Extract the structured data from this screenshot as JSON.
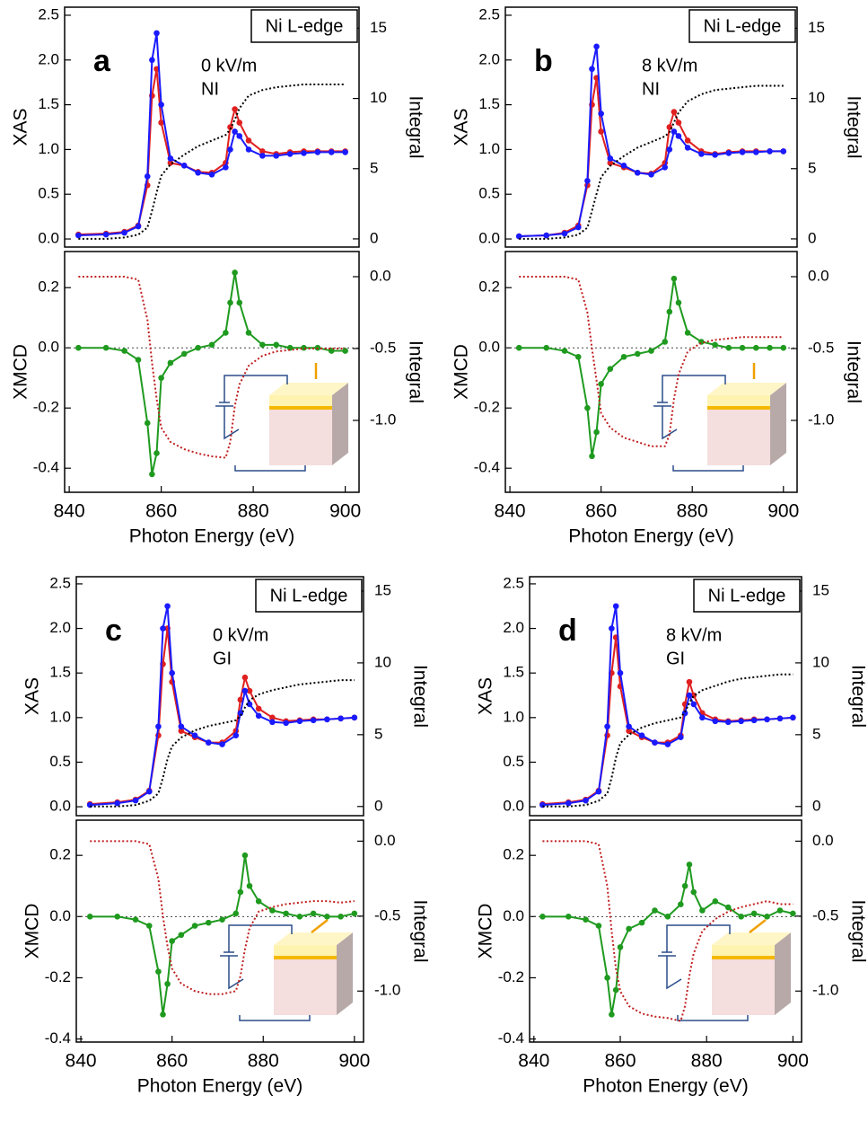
{
  "chart_data": [
    {
      "type": "line",
      "panel": "a",
      "badge": "Ni L-edge",
      "annotations": [
        "0 kV/m",
        "NI"
      ],
      "ylabel": "XAS",
      "y2label": "Integral",
      "x": [
        842,
        848,
        852,
        855,
        857,
        858,
        859,
        860,
        862,
        865,
        868,
        871,
        874,
        875,
        876,
        877,
        879,
        882,
        885,
        888,
        891,
        894,
        897,
        900
      ],
      "xlim": [
        839,
        903
      ],
      "ylim": [
        -0.09,
        2.59
      ],
      "yticks": [
        {
          "value": 0,
          "label": "0.0"
        },
        0.5,
        {
          "value": 1,
          "label": "1.0"
        },
        1.5,
        {
          "value": 2,
          "label": "2.0"
        },
        2.5
      ],
      "y2lim": [
        -0.58,
        16.5
      ],
      "y2ticks": [
        0,
        5,
        10,
        15
      ],
      "series": [
        {
          "color": "#e02020",
          "markers": true,
          "values": [
            0.05,
            0.06,
            0.08,
            0.15,
            0.6,
            1.6,
            1.9,
            1.3,
            0.85,
            0.82,
            0.75,
            0.74,
            0.85,
            1.25,
            1.45,
            1.3,
            1.1,
            0.98,
            0.95,
            0.97,
            0.98,
            0.98,
            0.98,
            0.98
          ]
        },
        {
          "color": "#1a1aff",
          "markers": true,
          "values": [
            0.04,
            0.05,
            0.07,
            0.14,
            0.7,
            2.0,
            2.3,
            1.5,
            0.9,
            0.82,
            0.74,
            0.72,
            0.8,
            1.0,
            1.2,
            1.15,
            1.0,
            0.93,
            0.93,
            0.95,
            0.96,
            0.97,
            0.97,
            0.97
          ]
        },
        {
          "color": "#000000",
          "dotted": true,
          "axis": "y2",
          "values": [
            0,
            0,
            0.1,
            0.3,
            0.8,
            2.0,
            3.3,
            4.5,
            5.3,
            6.0,
            6.6,
            7.0,
            7.4,
            7.8,
            8.5,
            9.3,
            10.2,
            10.6,
            10.8,
            10.9,
            11.0,
            11.0,
            11.0,
            11.0
          ]
        }
      ]
    },
    {
      "type": "line",
      "ylabel": "XMCD",
      "y2label": "Integral",
      "xlabel": "Photon Energy (eV)",
      "zero_line": true,
      "x": [
        842,
        848,
        852,
        855,
        857,
        858,
        859,
        860,
        862,
        865,
        868,
        871,
        874,
        875,
        876,
        877,
        879,
        882,
        885,
        888,
        891,
        894,
        897,
        900
      ],
      "xlim": [
        839,
        903
      ],
      "xticks": [
        840,
        860,
        880,
        900
      ],
      "ylim": [
        -0.48,
        0.32
      ],
      "yticks": [
        0.2,
        {
          "value": 0,
          "label": "0.0"
        },
        -0.2,
        -0.4
      ],
      "y2lim": [
        -1.5,
        0.175
      ],
      "y2ticks": [
        {
          "value": 0,
          "label": "0.0"
        },
        -0.5,
        {
          "value": -1,
          "label": "-1.0"
        }
      ],
      "series": [
        {
          "color": "#1f9a1f",
          "markers": true,
          "values": [
            0,
            0,
            -0.01,
            -0.04,
            -0.25,
            -0.42,
            -0.35,
            -0.1,
            -0.05,
            -0.02,
            0,
            0.01,
            0.05,
            0.15,
            0.25,
            0.15,
            0.05,
            0.01,
            0.01,
            0,
            0,
            0,
            -0.01,
            -0.01
          ]
        },
        {
          "color": "#c02020",
          "dotted": true,
          "axis": "y2",
          "values": [
            0,
            0,
            0,
            -0.02,
            -0.3,
            -0.6,
            -0.85,
            -1.05,
            -1.15,
            -1.2,
            -1.23,
            -1.25,
            -1.26,
            -1.15,
            -0.9,
            -0.75,
            -0.62,
            -0.55,
            -0.52,
            -0.51,
            -0.5,
            -0.5,
            -0.5,
            -0.5
          ]
        }
      ]
    },
    {
      "type": "line",
      "panel": "b",
      "badge": "Ni L-edge",
      "annotations": [
        "8 kV/m",
        "NI"
      ],
      "ylabel": "XAS",
      "y2label": "Integral",
      "x": [
        842,
        848,
        852,
        855,
        857,
        858,
        859,
        860,
        862,
        865,
        868,
        871,
        874,
        875,
        876,
        877,
        879,
        882,
        885,
        888,
        891,
        894,
        897,
        900
      ],
      "xlim": [
        839,
        903
      ],
      "ylim": [
        -0.09,
        2.59
      ],
      "yticks": [
        {
          "value": 0,
          "label": "0.0"
        },
        0.5,
        {
          "value": 1,
          "label": "1.0"
        },
        1.5,
        {
          "value": 2,
          "label": "2.0"
        },
        2.5
      ],
      "y2lim": [
        -0.58,
        16.5
      ],
      "y2ticks": [
        0,
        5,
        10,
        15
      ],
      "series": [
        {
          "color": "#e02020",
          "markers": true,
          "values": [
            0.03,
            0.04,
            0.07,
            0.15,
            0.6,
            1.5,
            1.8,
            1.2,
            0.85,
            0.8,
            0.74,
            0.73,
            0.85,
            1.25,
            1.42,
            1.3,
            1.1,
            0.98,
            0.95,
            0.97,
            0.98,
            0.98,
            0.98,
            0.98
          ]
        },
        {
          "color": "#1a1aff",
          "markers": true,
          "values": [
            0.03,
            0.04,
            0.06,
            0.13,
            0.65,
            1.9,
            2.15,
            1.4,
            0.9,
            0.82,
            0.74,
            0.72,
            0.8,
            1.0,
            1.2,
            1.15,
            1.02,
            0.95,
            0.94,
            0.96,
            0.97,
            0.97,
            0.98,
            0.98
          ]
        },
        {
          "color": "#000000",
          "dotted": true,
          "axis": "y2",
          "values": [
            0,
            0,
            0.1,
            0.3,
            0.8,
            2,
            3.2,
            4.4,
            5.2,
            5.9,
            6.5,
            6.9,
            7.3,
            7.6,
            8.3,
            9,
            9.8,
            10.3,
            10.6,
            10.7,
            10.8,
            10.9,
            10.9,
            10.9
          ]
        }
      ]
    },
    {
      "type": "line",
      "ylabel": "XMCD",
      "y2label": "Integral",
      "xlabel": "Photon Energy (eV)",
      "zero_line": true,
      "x": [
        842,
        848,
        852,
        855,
        857,
        858,
        859,
        860,
        862,
        865,
        868,
        871,
        874,
        875,
        876,
        877,
        879,
        882,
        885,
        888,
        891,
        894,
        897,
        900
      ],
      "xlim": [
        839,
        903
      ],
      "xticks": [
        840,
        860,
        880,
        900
      ],
      "ylim": [
        -0.48,
        0.32
      ],
      "yticks": [
        0.2,
        {
          "value": 0,
          "label": "0.0"
        },
        -0.2,
        -0.4
      ],
      "y2lim": [
        -1.5,
        0.175
      ],
      "y2ticks": [
        {
          "value": 0,
          "label": "0.0"
        },
        -0.5,
        {
          "value": -1,
          "label": "-1.0"
        }
      ],
      "series": [
        {
          "color": "#1f9a1f",
          "markers": true,
          "values": [
            0,
            0,
            -0.01,
            -0.03,
            -0.2,
            -0.36,
            -0.28,
            -0.12,
            -0.07,
            -0.03,
            -0.02,
            -0.01,
            0.02,
            0.12,
            0.23,
            0.15,
            0.05,
            0.02,
            0.01,
            0,
            0,
            0,
            0,
            0
          ]
        },
        {
          "color": "#c02020",
          "dotted": true,
          "axis": "y2",
          "values": [
            0,
            0,
            0,
            -0.02,
            -0.25,
            -0.5,
            -0.72,
            -0.95,
            -1.05,
            -1.12,
            -1.15,
            -1.18,
            -1.18,
            -1.1,
            -0.85,
            -0.68,
            -0.52,
            -0.46,
            -0.44,
            -0.43,
            -0.42,
            -0.42,
            -0.42,
            -0.42
          ]
        }
      ]
    },
    {
      "type": "line",
      "panel": "c",
      "badge": "Ni L-edge",
      "annotations": [
        "0 kV/m",
        "GI"
      ],
      "ylabel": "XAS",
      "y2label": "Integral",
      "x": [
        842,
        848,
        852,
        855,
        857,
        858,
        859,
        860,
        862,
        865,
        868,
        871,
        874,
        875,
        876,
        877,
        879,
        882,
        885,
        888,
        891,
        894,
        897,
        900
      ],
      "xlim": [
        839,
        902
      ],
      "ylim": [
        -0.1,
        2.58
      ],
      "yticks": [
        {
          "value": 0,
          "label": "0.0"
        },
        0.5,
        {
          "value": 1,
          "label": "1.0"
        },
        1.5,
        {
          "value": 2,
          "label": "2.0"
        },
        2.5
      ],
      "y2lim": [
        -0.64,
        16.0
      ],
      "y2ticks": [
        0,
        5,
        10,
        15
      ],
      "series": [
        {
          "color": "#e02020",
          "markers": true,
          "values": [
            0.03,
            0.05,
            0.08,
            0.18,
            0.8,
            1.6,
            2.0,
            1.4,
            0.85,
            0.78,
            0.72,
            0.72,
            0.85,
            1.2,
            1.45,
            1.3,
            1.1,
            1.0,
            0.96,
            0.97,
            0.98,
            0.98,
            0.99,
            1.0
          ]
        },
        {
          "color": "#1a1aff",
          "markers": true,
          "values": [
            0.02,
            0.04,
            0.07,
            0.17,
            0.9,
            2.0,
            2.25,
            1.5,
            0.9,
            0.8,
            0.72,
            0.7,
            0.8,
            1.05,
            1.3,
            1.15,
            1.02,
            0.95,
            0.94,
            0.96,
            0.97,
            0.98,
            0.99,
            1.0
          ]
        },
        {
          "color": "#000000",
          "dotted": true,
          "axis": "y2",
          "values": [
            0,
            0,
            0.1,
            0.4,
            0.9,
            2,
            3.3,
            4.2,
            4.8,
            5.3,
            5.6,
            5.8,
            6.0,
            6.3,
            6.9,
            7.4,
            7.8,
            8.1,
            8.3,
            8.5,
            8.6,
            8.7,
            8.8,
            8.8
          ]
        }
      ]
    },
    {
      "type": "line",
      "ylabel": "XMCD",
      "y2label": "Integral",
      "xlabel": "Photon Energy (eV)",
      "zero_line": true,
      "x": [
        842,
        848,
        852,
        855,
        857,
        858,
        859,
        860,
        862,
        865,
        868,
        871,
        874,
        875,
        876,
        877,
        879,
        882,
        885,
        888,
        891,
        894,
        897,
        900
      ],
      "xlim": [
        839,
        902
      ],
      "xticks": [
        840,
        860,
        880,
        900
      ],
      "ylim": [
        -0.41,
        0.315
      ],
      "yticks": [
        0.2,
        {
          "value": 0,
          "label": "0.0"
        },
        -0.2,
        -0.4
      ],
      "y2lim": [
        -1.34,
        0.14
      ],
      "y2ticks": [
        {
          "value": 0,
          "label": "0.0"
        },
        -0.5,
        {
          "value": -1,
          "label": "-1.0"
        }
      ],
      "series": [
        {
          "color": "#1f9a1f",
          "markers": true,
          "values": [
            0,
            0,
            -0.01,
            -0.03,
            -0.18,
            -0.32,
            -0.22,
            -0.08,
            -0.06,
            -0.03,
            -0.02,
            -0.01,
            0.01,
            0.08,
            0.2,
            0.1,
            0.05,
            0.02,
            0.01,
            0,
            0.01,
            0,
            0,
            0.01
          ]
        },
        {
          "color": "#c02020",
          "dotted": true,
          "axis": "y2",
          "values": [
            0,
            0,
            0,
            -0.02,
            -0.25,
            -0.5,
            -0.7,
            -0.85,
            -0.95,
            -1.0,
            -1.02,
            -1.02,
            -1.0,
            -0.9,
            -0.72,
            -0.58,
            -0.47,
            -0.44,
            -0.42,
            -0.41,
            -0.4,
            -0.4,
            -0.41,
            -0.4
          ]
        }
      ]
    },
    {
      "type": "line",
      "panel": "d",
      "badge": "Ni L-edge",
      "annotations": [
        "8 kV/m",
        "GI"
      ],
      "ylabel": "XAS",
      "y2label": "Integral",
      "x": [
        842,
        848,
        852,
        855,
        857,
        858,
        859,
        860,
        862,
        865,
        868,
        871,
        874,
        875,
        876,
        877,
        879,
        882,
        885,
        888,
        891,
        894,
        897,
        900
      ],
      "xlim": [
        839,
        902
      ],
      "ylim": [
        -0.1,
        2.58
      ],
      "yticks": [
        {
          "value": 0,
          "label": "0.0"
        },
        0.5,
        {
          "value": 1,
          "label": "1.0"
        },
        1.5,
        {
          "value": 2,
          "label": "2.0"
        },
        2.5
      ],
      "y2lim": [
        -0.64,
        16.0
      ],
      "y2ticks": [
        0,
        5,
        10,
        15
      ],
      "series": [
        {
          "color": "#e02020",
          "markers": true,
          "values": [
            0.03,
            0.05,
            0.08,
            0.18,
            0.8,
            1.5,
            1.9,
            1.35,
            0.85,
            0.78,
            0.72,
            0.72,
            0.8,
            1.15,
            1.4,
            1.25,
            1.05,
            0.98,
            0.96,
            0.97,
            0.98,
            0.98,
            0.99,
            1.0
          ]
        },
        {
          "color": "#1a1aff",
          "markers": true,
          "values": [
            0.02,
            0.04,
            0.07,
            0.17,
            0.9,
            2.0,
            2.25,
            1.5,
            0.9,
            0.8,
            0.72,
            0.7,
            0.78,
            1.05,
            1.25,
            1.15,
            1.0,
            0.96,
            0.95,
            0.96,
            0.97,
            0.98,
            0.99,
            1.0
          ]
        },
        {
          "color": "#000000",
          "dotted": true,
          "axis": "y2",
          "values": [
            0,
            0,
            0.1,
            0.4,
            0.9,
            2,
            3.4,
            4.4,
            5.0,
            5.5,
            5.8,
            6.0,
            6.2,
            6.6,
            7.2,
            7.7,
            8.1,
            8.4,
            8.7,
            8.9,
            9.0,
            9.1,
            9.2,
            9.2
          ]
        }
      ]
    },
    {
      "type": "line",
      "ylabel": "XMCD",
      "y2label": "Integral",
      "xlabel": "Photon Energy (eV)",
      "zero_line": true,
      "x": [
        842,
        848,
        852,
        855,
        857,
        858,
        859,
        860,
        862,
        865,
        868,
        871,
        874,
        875,
        876,
        877,
        879,
        882,
        885,
        888,
        891,
        894,
        897,
        900
      ],
      "xlim": [
        839,
        902
      ],
      "xticks": [
        840,
        860,
        880,
        900
      ],
      "ylim": [
        -0.41,
        0.315
      ],
      "yticks": [
        0.2,
        {
          "value": 0,
          "label": "0.0"
        },
        -0.2,
        -0.4
      ],
      "y2lim": [
        -1.34,
        0.14
      ],
      "y2ticks": [
        {
          "value": 0,
          "label": "0.0"
        },
        -0.5,
        {
          "value": -1,
          "label": "-1.0"
        }
      ],
      "series": [
        {
          "color": "#1f9a1f",
          "markers": true,
          "values": [
            0,
            0,
            -0.01,
            -0.03,
            -0.2,
            -0.32,
            -0.24,
            -0.1,
            -0.04,
            -0.02,
            0.02,
            0,
            0.04,
            0.1,
            0.17,
            0.08,
            0.02,
            0.05,
            0.03,
            0,
            0.01,
            0,
            0.02,
            0.01
          ]
        },
        {
          "color": "#c02020",
          "dotted": true,
          "axis": "y2",
          "values": [
            0,
            0,
            0,
            -0.02,
            -0.3,
            -0.6,
            -0.85,
            -1.0,
            -1.1,
            -1.15,
            -1.17,
            -1.18,
            -1.2,
            -1.1,
            -0.9,
            -0.75,
            -0.6,
            -0.52,
            -0.47,
            -0.44,
            -0.42,
            -0.4,
            -0.42,
            -0.42
          ]
        }
      ]
    }
  ]
}
